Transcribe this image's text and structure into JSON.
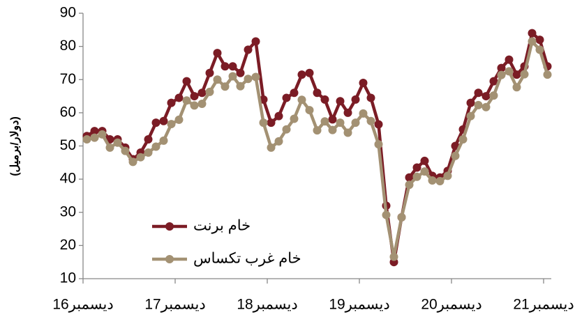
{
  "chart_data": {
    "type": "line",
    "ylabel": "(دولار/برميل)",
    "categories": [
      "ديسمبر16",
      null,
      null,
      null,
      null,
      null,
      null,
      null,
      null,
      null,
      null,
      null,
      "ديسمبر17",
      null,
      null,
      null,
      null,
      null,
      null,
      null,
      null,
      null,
      null,
      null,
      "ديسمبر18",
      null,
      null,
      null,
      null,
      null,
      null,
      null,
      null,
      null,
      null,
      null,
      "ديسمبر19",
      null,
      null,
      null,
      null,
      null,
      null,
      null,
      null,
      null,
      null,
      null,
      "ديسمبر20",
      null,
      null,
      null,
      null,
      null,
      null,
      null,
      null,
      null,
      null,
      null,
      "ديسمبر21"
    ],
    "series": [
      {
        "name": "خام برنت",
        "color": "#7b1c25",
        "values": [
          53,
          54.5,
          54.5,
          52,
          52,
          49.5,
          46,
          48,
          52,
          57,
          57.5,
          63,
          64.5,
          69.5,
          65,
          66,
          72,
          78,
          74,
          74,
          72,
          79,
          81.5,
          64,
          57,
          59,
          64.5,
          66,
          71.5,
          72,
          66,
          64,
          58,
          63.5,
          60,
          64,
          69,
          64.5,
          56.5,
          32,
          15,
          28.5,
          40.5,
          43.5,
          45.5,
          41,
          40.5,
          42.5,
          50,
          55,
          63,
          66,
          65,
          69.5,
          73.5,
          76,
          71.5,
          74,
          84,
          82,
          74
        ]
      },
      {
        "name": "خام غرب  تكساس",
        "color": "#a39173",
        "values": [
          52,
          52.5,
          53.5,
          49.5,
          51,
          48.5,
          45.2,
          46.6,
          48,
          49.8,
          51.6,
          56.6,
          57.9,
          63.7,
          62.2,
          62.7,
          66.3,
          70,
          67.9,
          71,
          68,
          70.2,
          70.8,
          57,
          49.5,
          51.4,
          55,
          58.2,
          63.9,
          60.8,
          54.7,
          57.4,
          54.8,
          57,
          54,
          57,
          59.8,
          57.5,
          50.5,
          29.2,
          16.6,
          28.5,
          38.3,
          40.7,
          42.3,
          39.6,
          39.4,
          41,
          47,
          52,
          59,
          62.3,
          61.7,
          65.2,
          71.4,
          72.5,
          67.7,
          71.6,
          81.5,
          79,
          71.5
        ]
      }
    ],
    "ylim": [
      10,
      90
    ],
    "yticks": [
      10,
      20,
      30,
      40,
      50,
      60,
      70,
      80,
      90
    ],
    "grid": false,
    "legend": "lower left"
  }
}
